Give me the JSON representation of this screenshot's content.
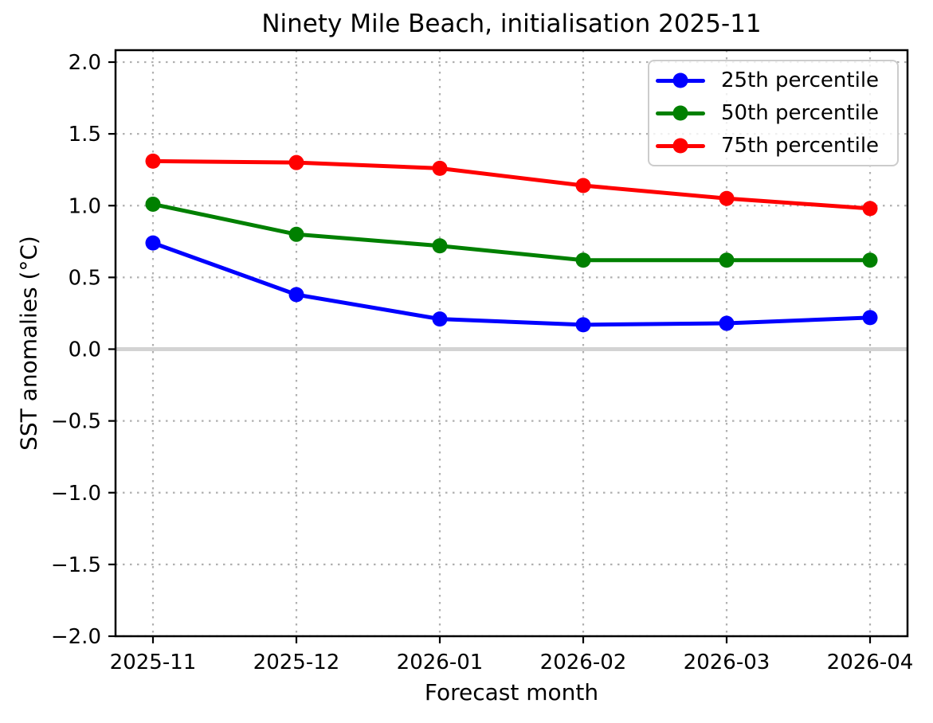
{
  "chart_data": {
    "type": "line",
    "title": "Ninety Mile Beach, initialisation 2025-11",
    "xlabel": "Forecast month",
    "ylabel": "SST anomalies (°C)",
    "categories": [
      "2025-11",
      "2025-12",
      "2026-01",
      "2026-02",
      "2026-03",
      "2026-04"
    ],
    "series": [
      {
        "name": "25th percentile",
        "color": "#0000ff",
        "values": [
          0.74,
          0.38,
          0.21,
          0.17,
          0.18,
          0.22
        ]
      },
      {
        "name": "50th percentile",
        "color": "#008000",
        "values": [
          1.01,
          0.8,
          0.72,
          0.62,
          0.62,
          0.62
        ]
      },
      {
        "name": "75th percentile",
        "color": "#ff0000",
        "values": [
          1.31,
          1.3,
          1.26,
          1.14,
          1.05,
          0.98
        ]
      }
    ],
    "ylim": [
      -2.0,
      2.0
    ],
    "yticks": [
      2.0,
      1.5,
      1.0,
      0.5,
      0.0,
      -0.5,
      -1.0,
      -1.5,
      -2.0
    ],
    "y_tick_labels": [
      "2.0",
      "1.5",
      "1.0",
      "0.5",
      "0.0",
      "−0.5",
      "−1.0",
      "−1.5",
      "−2.0"
    ],
    "grid": "dotted",
    "grid_color": "#b0b0b0",
    "zero_line": true,
    "zero_line_color": "#d3d3d3",
    "axis_color": "#000000",
    "background": "#ffffff",
    "legend_position": "upper right",
    "marker": "circle"
  }
}
